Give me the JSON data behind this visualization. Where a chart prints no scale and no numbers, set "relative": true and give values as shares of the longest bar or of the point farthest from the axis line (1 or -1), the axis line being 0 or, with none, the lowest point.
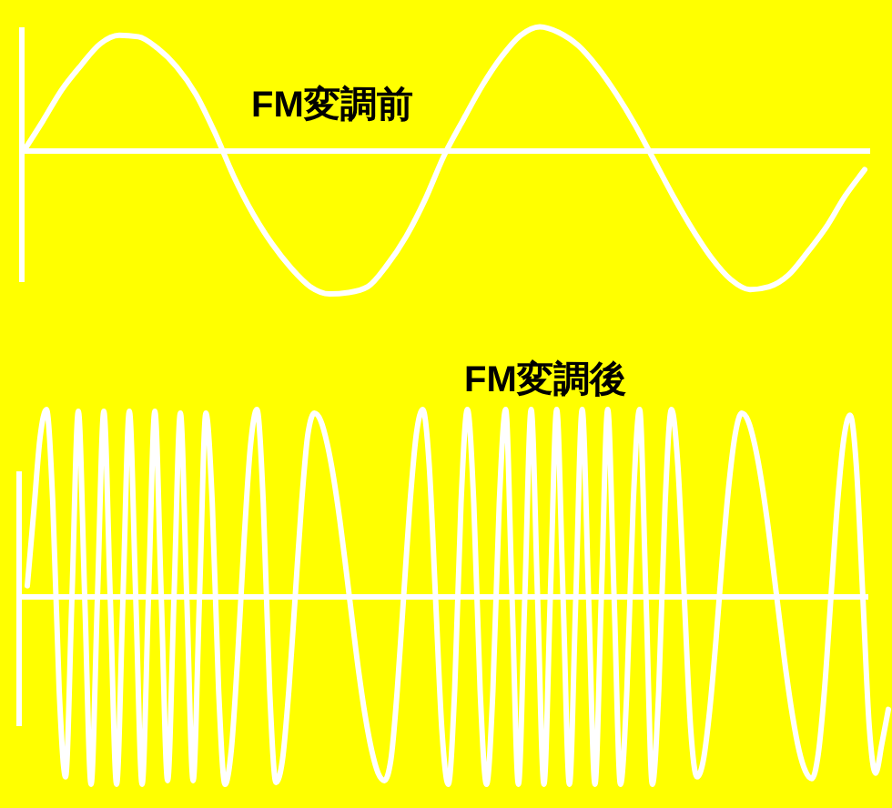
{
  "chart_data": [
    {
      "type": "line",
      "title": "FM変調前",
      "relative": true,
      "color": "#ffffff",
      "categories": [
        null,
        null,
        null,
        null,
        null,
        null,
        null,
        null,
        null,
        null,
        null,
        null,
        null,
        null,
        null,
        null,
        null,
        null,
        null,
        null,
        null,
        null,
        null,
        null,
        null,
        null,
        null,
        null,
        null,
        null,
        null,
        null,
        null,
        null,
        null,
        null,
        null,
        null,
        null,
        null,
        null,
        null,
        null,
        null,
        null
      ],
      "values": [
        0,
        0.21,
        0.43,
        0.6,
        0.75,
        0.81,
        0.8,
        0.72,
        0.59,
        0.4,
        0.13,
        -0.18,
        -0.44,
        -0.65,
        -0.82,
        -0.95,
        -1,
        -0.99,
        -0.95,
        -0.8,
        -0.6,
        -0.34,
        -0.03,
        0.22,
        0.46,
        0.66,
        0.81,
        0.87,
        0.83,
        0.74,
        0.59,
        0.4,
        0.18,
        -0.07,
        -0.32,
        -0.55,
        -0.75,
        -0.9,
        -0.97,
        -0.95,
        -0.87,
        -0.71,
        -0.53,
        -0.31,
        -0.13
      ]
    },
    {
      "type": "line",
      "title": "FM変調後",
      "relative": true,
      "color": "#ffffff",
      "categories": [
        null,
        null,
        null,
        null,
        null,
        null,
        null,
        null,
        null,
        null,
        null,
        null,
        null,
        null,
        null,
        null,
        null,
        null,
        null,
        null,
        null,
        null,
        null,
        null,
        null,
        null,
        null,
        null,
        null,
        null,
        null,
        null,
        null,
        null,
        null,
        null,
        null,
        null,
        null,
        null,
        null,
        null,
        null,
        null,
        null,
        null,
        null,
        null,
        null,
        null,
        null,
        null,
        null,
        null,
        null,
        null,
        null,
        null,
        null,
        null,
        null,
        null,
        null,
        null,
        null,
        null,
        null,
        null,
        null,
        null,
        null,
        null,
        null,
        null,
        null,
        null,
        null,
        null,
        null,
        null,
        null,
        null,
        null,
        null,
        null,
        null,
        null,
        null,
        null,
        null,
        null,
        null,
        null,
        null,
        null,
        null,
        null,
        null,
        null,
        null,
        null,
        null,
        null,
        null,
        null,
        null,
        null,
        null,
        null,
        null,
        null,
        null,
        null,
        null,
        null,
        null,
        null,
        null,
        null,
        null,
        null,
        null,
        null,
        null,
        null,
        null,
        null,
        null,
        null,
        null,
        null,
        null,
        null,
        null,
        null,
        null
      ],
      "values": [
        0.06,
        0.45,
        0.85,
        1,
        0.5,
        -0.5,
        -0.96,
        0,
        0.99,
        0,
        -1,
        0,
        0.99,
        0,
        -1,
        0,
        0.99,
        0,
        -1,
        0,
        0.99,
        0,
        -0.98,
        0,
        0.98,
        0,
        -0.98,
        0,
        0.98,
        0.5,
        -0.5,
        -1,
        -0.81,
        -0.31,
        0.31,
        0.81,
        1,
        0.5,
        -0.5,
        -0.99,
        -0.87,
        -0.5,
        0,
        0.5,
        0.87,
        0.98,
        0.94,
        0.82,
        0.64,
        0.41,
        0.14,
        -0.14,
        -0.41,
        -0.64,
        -0.82,
        -0.94,
        -0.98,
        -0.87,
        -0.5,
        0,
        0.5,
        0.87,
        1,
        0.71,
        0,
        -0.71,
        -1,
        -0.5,
        0.5,
        1,
        0.5,
        -0.5,
        -1,
        -0.5,
        0.5,
        1,
        0,
        -1,
        0,
        1,
        0,
        -1,
        0,
        1,
        0,
        -1,
        0,
        1,
        0,
        -1,
        0,
        1,
        0,
        -1,
        -0.5,
        0.5,
        1,
        0,
        -1,
        -0.5,
        0.5,
        1,
        0.7,
        0,
        -0.7,
        -0.96,
        -0.87,
        -0.6,
        -0.22,
        0.22,
        0.6,
        0.87,
        0.98,
        0.94,
        0.82,
        0.64,
        0.41,
        0.14,
        -0.14,
        -0.41,
        -0.64,
        -0.82,
        -0.93,
        -0.97,
        -0.84,
        -0.49,
        0,
        0.49,
        0.84,
        0.97,
        0.69,
        0,
        -0.69,
        -0.94,
        -0.78,
        -0.6
      ]
    }
  ]
}
